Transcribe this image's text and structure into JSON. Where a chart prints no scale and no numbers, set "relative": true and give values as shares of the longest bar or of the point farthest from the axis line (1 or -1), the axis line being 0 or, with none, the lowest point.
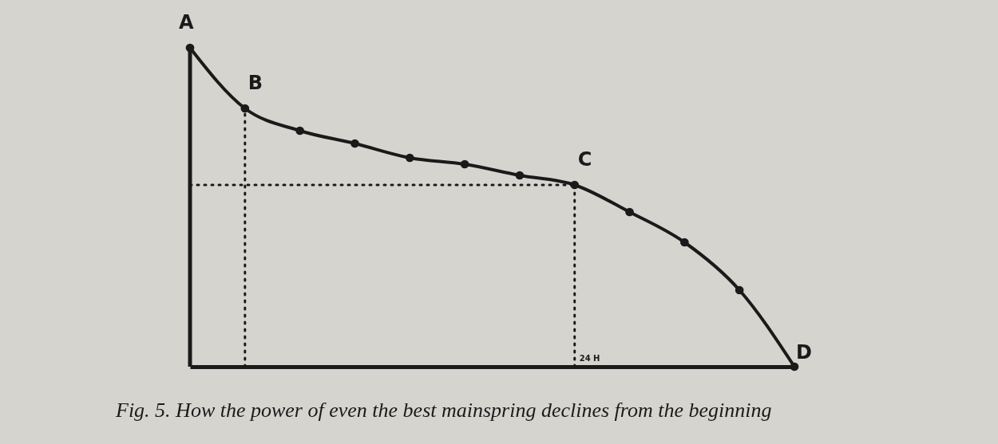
{
  "chart_data": {
    "type": "line",
    "relative": true,
    "categories": [
      null,
      null,
      null,
      null,
      null,
      null,
      null,
      null,
      null,
      null,
      null,
      null
    ],
    "values": [
      1,
      0.81,
      0.74,
      0.7,
      0.655,
      0.635,
      0.6,
      0.57,
      0.485,
      0.39,
      0.24,
      0
    ],
    "color": "#1a1a1a",
    "marker": "circle",
    "line_style": "solid",
    "annotations": [
      "A",
      "B",
      "C",
      "D",
      "24 H",
      "Fig. 5.  How the power of even the best mainspring declines from the beginning"
    ]
  }
}
